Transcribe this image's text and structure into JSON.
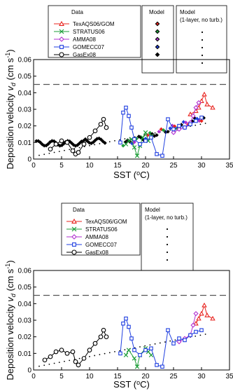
{
  "chart_data": [
    {
      "type": "scatter",
      "xlabel": "SST (ºC)",
      "ylabel": "Deposition velocity v_d (cm s⁻¹)",
      "xlim": [
        0,
        35
      ],
      "ylim": [
        0,
        0.06
      ],
      "xticks": [
        "0",
        "5",
        "10",
        "15",
        "20",
        "25",
        "30",
        "35"
      ],
      "yticks": [
        "0",
        "0.01",
        "0.02",
        "0.03",
        "0.04",
        "0.05",
        "0.06"
      ],
      "reference_line": 0.045,
      "legend_data_title": "Data",
      "legend_model_title": "Model",
      "legend_model2_title": "Model (1-layer, no turb.)",
      "series": [
        {
          "name": "TexAQS06/GOM",
          "color": "#e8231e",
          "marker": "triangle",
          "x": [
            28,
            29,
            29.5,
            30,
            30.5,
            31,
            32
          ],
          "y": [
            0.027,
            0.029,
            0.031,
            0.035,
            0.039,
            0.033,
            0.031
          ]
        },
        {
          "name": "STRATUS06",
          "color": "#1f9e3a",
          "marker": "x",
          "x": [
            16.5,
            17,
            17.5,
            18,
            18.5,
            19,
            19.5,
            20,
            20.5,
            21
          ],
          "y": [
            0.009,
            0.011,
            0.012,
            0.007,
            0.002,
            0.008,
            0.013,
            0.016,
            0.011,
            0.014
          ]
        },
        {
          "name": "AMMA08",
          "color": "#b030d0",
          "marker": "diamond",
          "x": [
            25,
            26,
            27,
            28,
            28.5,
            29,
            29.5
          ],
          "y": [
            0.016,
            0.018,
            0.019,
            0.022,
            0.026,
            0.031,
            0.034
          ]
        },
        {
          "name": "GOMECC07",
          "color": "#1f3fe0",
          "marker": "square",
          "x": [
            15.5,
            16,
            16.5,
            17,
            17.5,
            18,
            19,
            20,
            21,
            22,
            23,
            24,
            25,
            26,
            27,
            28,
            29,
            30
          ],
          "y": [
            0.01,
            0.028,
            0.031,
            0.026,
            0.019,
            0.012,
            0.009,
            0.011,
            0.013,
            0.003,
            0.002,
            0.024,
            0.018,
            0.02,
            0.019,
            0.021,
            0.023,
            0.025
          ]
        },
        {
          "name": "GasEx08",
          "color": "#000000",
          "marker": "circle",
          "x": [
            3,
            4,
            5,
            6,
            7,
            7.5,
            8,
            9,
            10,
            11,
            12,
            12.5,
            13
          ],
          "y": [
            0.006,
            0.009,
            0.011,
            0.01,
            0.005,
            0.003,
            0.004,
            0.009,
            0.013,
            0.017,
            0.021,
            0.024,
            0.019
          ]
        }
      ]
    },
    {
      "type": "scatter",
      "xlabel": "SST (ºC)",
      "ylabel": "Deposition velocity v_d (cm s⁻¹)",
      "xlim": [
        0,
        35
      ],
      "ylim": [
        0,
        0.06
      ],
      "xticks": [
        "0",
        "5",
        "10",
        "15",
        "20",
        "25",
        "30",
        "35"
      ],
      "yticks": [
        "0",
        "0.01",
        "0.02",
        "0.03",
        "0.04",
        "0.05",
        "0.06"
      ],
      "reference_line": 0.045,
      "legend_data_title": "Data",
      "legend_model2_title": "Model (1-layer, no turb.)",
      "series": [
        {
          "name": "TexAQS06/GOM",
          "color": "#e8231e",
          "marker": "triangle",
          "x": [
            29,
            29.5,
            30,
            30.5,
            31,
            32
          ],
          "y": [
            0.028,
            0.031,
            0.034,
            0.039,
            0.033,
            0.031
          ]
        },
        {
          "name": "STRATUS06",
          "color": "#1f9e3a",
          "marker": "x",
          "x": [
            16.5,
            17,
            18,
            18.5,
            19,
            20,
            20.5,
            21
          ],
          "y": [
            0.009,
            0.012,
            0.007,
            0.002,
            0.009,
            0.013,
            0.011,
            0.009
          ]
        },
        {
          "name": "AMMA08",
          "color": "#b030d0",
          "marker": "diamond",
          "x": [
            26,
            27,
            28,
            28.5,
            29
          ],
          "y": [
            0.017,
            0.019,
            0.021,
            0.027,
            0.034
          ]
        },
        {
          "name": "GOMECC07",
          "color": "#1f3fe0",
          "marker": "square",
          "x": [
            15.5,
            16,
            16.5,
            17,
            17.5,
            18,
            19,
            20,
            21,
            22,
            23,
            24,
            25,
            26,
            27,
            28,
            29,
            30
          ],
          "y": [
            0.01,
            0.028,
            0.031,
            0.026,
            0.019,
            0.012,
            0.009,
            0.012,
            0.013,
            0.003,
            0.002,
            0.024,
            0.016,
            0.019,
            0.018,
            0.021,
            0.023,
            0.024
          ]
        },
        {
          "name": "GasEx08",
          "color": "#000000",
          "marker": "circle",
          "x": [
            2,
            3,
            4,
            5,
            6,
            7,
            7.5,
            8,
            9,
            10,
            11,
            12,
            12.5,
            13
          ],
          "y": [
            0.006,
            0.008,
            0.011,
            0.012,
            0.01,
            0.011,
            0.005,
            0.003,
            0.007,
            0.012,
            0.016,
            0.02,
            0.024,
            0.02
          ]
        }
      ]
    }
  ]
}
